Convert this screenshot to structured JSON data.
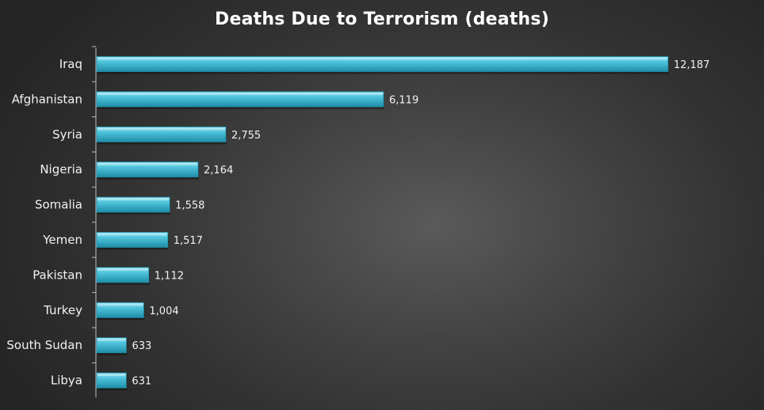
{
  "chart_data": {
    "type": "bar",
    "orientation": "horizontal",
    "title": "Deaths Due to Terrorism (deaths)",
    "categories": [
      "Iraq",
      "Afghanistan",
      "Syria",
      "Nigeria",
      "Somalia",
      "Yemen",
      "Pakistan",
      "Turkey",
      "South Sudan",
      "Libya"
    ],
    "values": [
      12187,
      6119,
      2755,
      2164,
      1558,
      1517,
      1112,
      1004,
      633,
      631
    ],
    "value_labels": [
      "12,187",
      "6,119",
      "2,755",
      "2,164",
      "1,558",
      "1,517",
      "1,112",
      "1,004",
      "633",
      "631"
    ],
    "xlim": [
      0,
      12187
    ],
    "grid": false,
    "legend": "none",
    "colors": {
      "bar": "#4fc3dc",
      "bar_light": "#8fe2f2",
      "bar_dark": "#1f8ea8",
      "text": "#f2f2f2"
    }
  }
}
